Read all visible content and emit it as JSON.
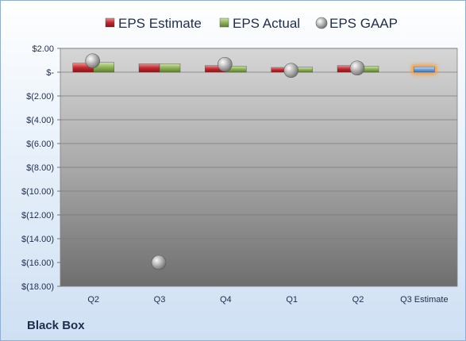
{
  "company_label": "Black Box",
  "chart_data": {
    "type": "bar",
    "categories": [
      "Q2",
      "Q3",
      "Q4",
      "Q1",
      "Q2",
      "Q3 Estimate"
    ],
    "series": [
      {
        "name": "EPS Estimate",
        "kind": "bar",
        "color": "#c0282d",
        "values": [
          0.75,
          0.7,
          0.55,
          0.4,
          0.55,
          null
        ]
      },
      {
        "name": "EPS Actual",
        "kind": "bar",
        "color": "#8db255",
        "values": [
          0.82,
          0.72,
          0.52,
          0.42,
          0.5,
          null
        ]
      },
      {
        "name": "EPS GAAP",
        "kind": "scatter",
        "color": "#a6a6a6",
        "values": [
          0.95,
          -16.0,
          0.65,
          0.15,
          0.35,
          null
        ]
      },
      {
        "name": "",
        "kind": "bar",
        "color": "#6fa3dc",
        "values": [
          null,
          null,
          null,
          null,
          null,
          0.45
        ]
      }
    ],
    "ylim": [
      -18,
      2
    ],
    "y_ticks": [
      2,
      0,
      -2,
      -4,
      -6,
      -8,
      -10,
      -12,
      -14,
      -16,
      -18
    ],
    "y_tick_labels": [
      "$2.00",
      "$-",
      "$(2.00)",
      "$(4.00)",
      "$(6.00)",
      "$(8.00)",
      "$(10.00)",
      "$(12.00)",
      "$(14.00)",
      "$(16.00)",
      "$(18.00)"
    ],
    "grid": true,
    "legend_position": "top"
  }
}
